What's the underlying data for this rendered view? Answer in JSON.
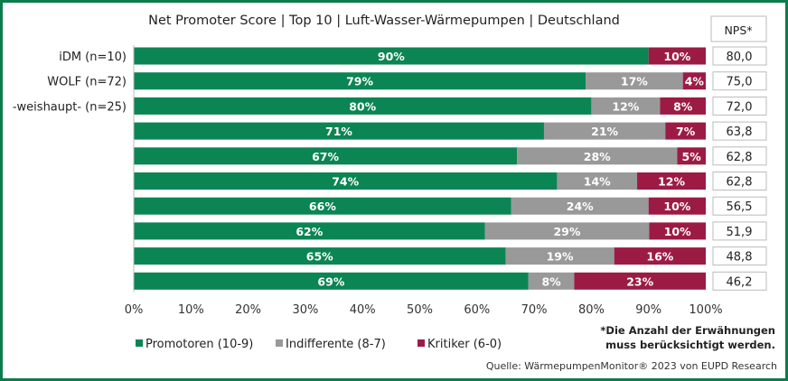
{
  "chart_data": {
    "type": "bar",
    "orientation": "horizontal",
    "stacked": true,
    "title": "Net Promoter Score | Top 10  | Luft-Wasser-Wärmepumpen | Deutschland",
    "categories": [
      "iDM (n=10)",
      "WOLF (n=72)",
      "-weishaupt- (n=25)",
      "",
      "",
      "",
      "",
      "",
      "",
      ""
    ],
    "series": [
      {
        "name": "Promotoren (10-9)",
        "color": "#0b8553",
        "values": [
          90,
          79,
          80,
          71,
          67,
          74,
          66,
          62,
          65,
          69
        ]
      },
      {
        "name": "Indifferente (8-7)",
        "color": "#999999",
        "values": [
          0,
          17,
          12,
          21,
          28,
          14,
          24,
          29,
          19,
          8
        ]
      },
      {
        "name": "Kritiker (6-0)",
        "color": "#9c1b45",
        "values": [
          10,
          4,
          8,
          7,
          5,
          12,
          10,
          10,
          16,
          23
        ]
      }
    ],
    "nps_header": "NPS*",
    "nps": [
      "80,0",
      "75,0",
      "72,0",
      "63,8",
      "62,8",
      "62,8",
      "56,5",
      "51,9",
      "48,8",
      "46,2"
    ],
    "xlim": [
      0,
      100
    ],
    "xticks": [
      "0%",
      "10%",
      "20%",
      "30%",
      "40%",
      "50%",
      "60%",
      "70%",
      "80%",
      "90%",
      "100%"
    ],
    "legend_position": "bottom",
    "grid": false,
    "footnote": [
      "*Die Anzahl der Erwähnungen",
      "muss berücksichtigt werden."
    ],
    "source": "Quelle: WärmepumpenMonitor® 2023 von EUPD Research"
  }
}
